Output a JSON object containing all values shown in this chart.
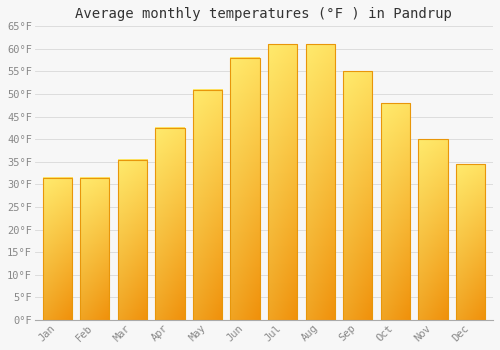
{
  "title": "Average monthly temperatures (°F ) in Pandrup",
  "months": [
    "Jan",
    "Feb",
    "Mar",
    "Apr",
    "May",
    "Jun",
    "Jul",
    "Aug",
    "Sep",
    "Oct",
    "Nov",
    "Dec"
  ],
  "values": [
    31.5,
    31.5,
    35.5,
    42.5,
    51.0,
    58.0,
    61.0,
    61.0,
    55.0,
    48.0,
    40.0,
    34.5
  ],
  "bar_color_bottom": "#F5A623",
  "bar_color_top": "#FFE066",
  "bar_color_left": "#FFDD55",
  "bar_outline_color": "#E8960A",
  "background_color": "#f7f7f7",
  "grid_color": "#d8d8d8",
  "ylim": [
    0,
    65
  ],
  "yticks": [
    0,
    5,
    10,
    15,
    20,
    25,
    30,
    35,
    40,
    45,
    50,
    55,
    60,
    65
  ],
  "ytick_labels": [
    "0°F",
    "5°F",
    "10°F",
    "15°F",
    "20°F",
    "25°F",
    "30°F",
    "35°F",
    "40°F",
    "45°F",
    "50°F",
    "55°F",
    "60°F",
    "65°F"
  ],
  "title_fontsize": 10,
  "tick_fontsize": 7.5,
  "tick_font_family": "monospace",
  "bar_width": 0.78
}
